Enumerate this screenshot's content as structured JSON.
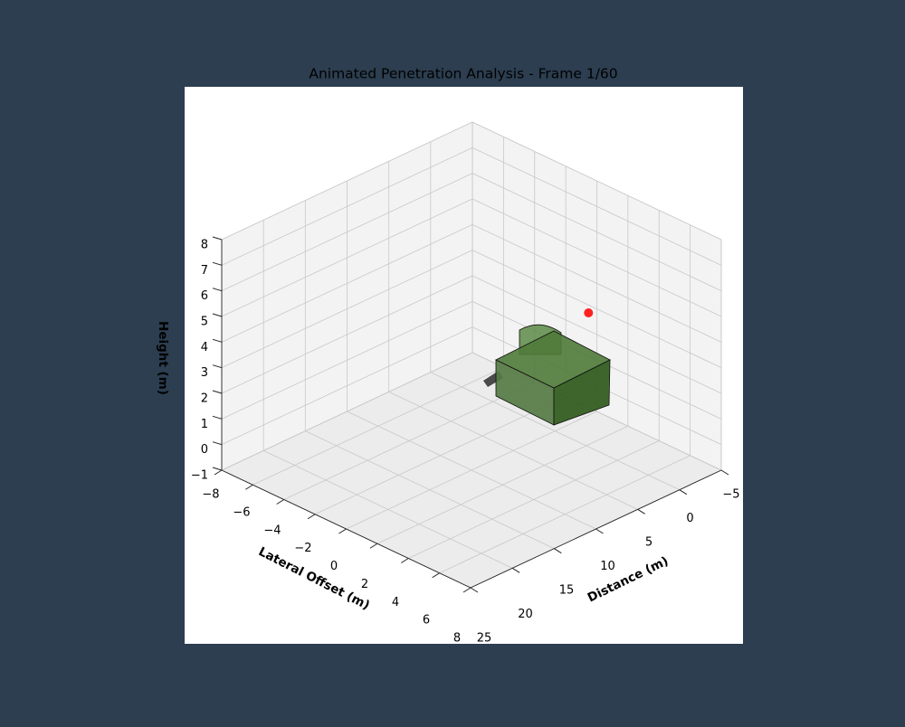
{
  "chart_data": {
    "type": "scatter3d",
    "title": "Animated Penetration Analysis - Frame 1/60",
    "xlabel": "Distance (m)",
    "ylabel": "Lateral Offset (m)",
    "zlabel": "Height (m)",
    "xlim": [
      -5,
      25
    ],
    "ylim": [
      -8,
      8
    ],
    "zlim": [
      -1,
      8
    ],
    "xticks": [
      {
        "value": -5,
        "label": "−5"
      },
      0,
      5,
      10,
      15,
      20,
      25
    ],
    "yticks": [
      {
        "value": -8,
        "label": "−8"
      },
      {
        "value": -6,
        "label": "−6"
      },
      {
        "value": -4,
        "label": "−4"
      },
      {
        "value": -2,
        "label": "−2"
      },
      0,
      2,
      4,
      6,
      8
    ],
    "zticks": [
      {
        "value": -1,
        "label": "−1"
      },
      0,
      1,
      2,
      3,
      4,
      5,
      6,
      7,
      8
    ],
    "grid": true,
    "scatter": {
      "color": "#ff2020",
      "x": [
        -4
      ],
      "y": [
        0
      ],
      "z": [
        3
      ]
    }
  }
}
